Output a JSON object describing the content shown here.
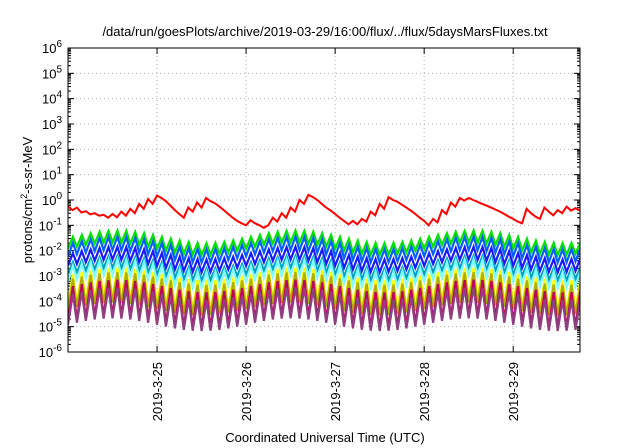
{
  "chart_data": {
    "type": "line",
    "title": "/data/run/goesPlots/archive/2019-03-29/16:00/flux/../flux/5daysMarsFluxes.txt",
    "xlabel": "Coordinated Universal Time (UTC)",
    "ylabel_main": "protons/cm",
    "ylabel_sup": "2",
    "ylabel_rest": "-s-sr-MeV",
    "y_scale": "log",
    "ylim": [
      1e-06,
      1000000.0
    ],
    "y_ticks": [
      {
        "mant": "10",
        "exp": "-6"
      },
      {
        "mant": "10",
        "exp": "-5"
      },
      {
        "mant": "10",
        "exp": "-4"
      },
      {
        "mant": "10",
        "exp": "-3"
      },
      {
        "mant": "10",
        "exp": "-2"
      },
      {
        "mant": "10",
        "exp": "-1"
      },
      {
        "mant": "10",
        "exp": "0"
      },
      {
        "mant": "10",
        "exp": "1"
      },
      {
        "mant": "10",
        "exp": "2"
      },
      {
        "mant": "10",
        "exp": "3"
      },
      {
        "mant": "10",
        "exp": "4"
      },
      {
        "mant": "10",
        "exp": "5"
      },
      {
        "mant": "10",
        "exp": "6"
      }
    ],
    "x_ticks": [
      "2019-3-25",
      "2019-3-26",
      "2019-3-27",
      "2019-3-28",
      "2019-3-29"
    ],
    "x_tick_days": [
      25,
      26,
      27,
      28,
      29
    ],
    "xlim_days": [
      24.0,
      29.75
    ],
    "grid": true,
    "legend": "none",
    "series": [
      {
        "color": "#ff0000",
        "x": [
          24.0,
          24.05,
          24.1,
          24.15,
          24.2,
          24.25,
          24.3,
          24.35,
          24.4,
          24.45,
          24.5,
          24.55,
          24.6,
          24.65,
          24.7,
          24.75,
          24.8,
          24.85,
          24.9,
          24.95,
          25.0,
          25.05,
          25.1,
          25.15,
          25.2,
          25.25,
          25.3,
          25.35,
          25.4,
          25.45,
          25.5,
          25.55,
          25.6,
          25.65,
          25.7,
          25.75,
          25.8,
          25.85,
          25.9,
          25.95,
          26.0,
          26.05,
          26.1,
          26.15,
          26.2,
          26.25,
          26.3,
          26.35,
          26.4,
          26.45,
          26.5,
          26.55,
          26.6,
          26.65,
          26.7,
          26.75,
          26.8,
          26.85,
          26.9,
          26.95,
          27.0,
          27.05,
          27.1,
          27.15,
          27.2,
          27.25,
          27.3,
          27.35,
          27.4,
          27.45,
          27.5,
          27.55,
          27.6,
          27.65,
          27.7,
          27.75,
          27.8,
          27.85,
          27.9,
          27.95,
          28.0,
          28.05,
          28.1,
          28.15,
          28.2,
          28.25,
          28.3,
          28.35,
          28.4,
          28.45,
          28.5,
          28.55,
          28.6,
          28.65,
          28.7,
          28.75,
          28.8,
          28.85,
          28.9,
          28.95,
          29.0,
          29.05,
          29.1,
          29.15,
          29.2,
          29.25,
          29.3,
          29.35,
          29.4,
          29.45,
          29.5,
          29.55,
          29.6,
          29.65,
          29.7,
          29.75
        ],
        "values": [
          0.55,
          0.4,
          0.5,
          0.32,
          0.36,
          0.27,
          0.3,
          0.24,
          0.26,
          0.2,
          0.28,
          0.21,
          0.35,
          0.24,
          0.45,
          0.3,
          0.7,
          0.45,
          1.1,
          0.7,
          1.5,
          1.2,
          0.9,
          0.6,
          0.4,
          0.28,
          0.2,
          0.5,
          0.35,
          0.8,
          0.5,
          1.2,
          0.9,
          0.75,
          0.55,
          0.4,
          0.28,
          0.2,
          0.15,
          0.12,
          0.1,
          0.16,
          0.12,
          0.1,
          0.08,
          0.1,
          0.2,
          0.14,
          0.3,
          0.2,
          0.5,
          0.35,
          1.0,
          0.7,
          1.6,
          1.3,
          1.0,
          0.7,
          0.5,
          0.38,
          0.28,
          0.2,
          0.15,
          0.11,
          0.15,
          0.11,
          0.18,
          0.14,
          0.35,
          0.25,
          0.7,
          0.45,
          1.3,
          1.0,
          0.85,
          0.65,
          0.5,
          0.38,
          0.28,
          0.2,
          0.15,
          0.1,
          0.18,
          0.13,
          0.4,
          0.28,
          0.8,
          0.55,
          1.2,
          0.95,
          1.2,
          1.0,
          0.85,
          0.7,
          0.6,
          0.5,
          0.42,
          0.35,
          0.28,
          0.22,
          0.18,
          0.14,
          0.12,
          0.45,
          0.3,
          0.22,
          0.18,
          0.5,
          0.35,
          0.25,
          0.4,
          0.3,
          0.55,
          0.38,
          0.48,
          0.38
        ]
      },
      {
        "color": "#00e000",
        "base": 0.035,
        "low": 0.012,
        "period": 0.1
      },
      {
        "color": "#0060ff",
        "base": 0.02,
        "low": 0.006,
        "period": 0.1
      },
      {
        "color": "#1a1aff",
        "base": 0.008,
        "low": 0.0025,
        "period": 0.1
      },
      {
        "color": "#00a0c0",
        "base": 0.0035,
        "low": 0.0012,
        "period": 0.1
      },
      {
        "color": "#80ffff",
        "base": 0.0025,
        "low": 0.0006,
        "period": 0.1
      },
      {
        "color": "#ffff00",
        "base": 0.0012,
        "low": 8e-05,
        "period": 0.1
      },
      {
        "color": "#b0b000",
        "base": 0.0008,
        "low": 5e-05,
        "period": 0.1
      },
      {
        "color": "#c00060",
        "base": 0.0004,
        "low": 1.5e-05,
        "period": 0.1
      },
      {
        "color": "#904080",
        "base": 0.0002,
        "low": 1.2e-05,
        "period": 0.1
      }
    ]
  }
}
